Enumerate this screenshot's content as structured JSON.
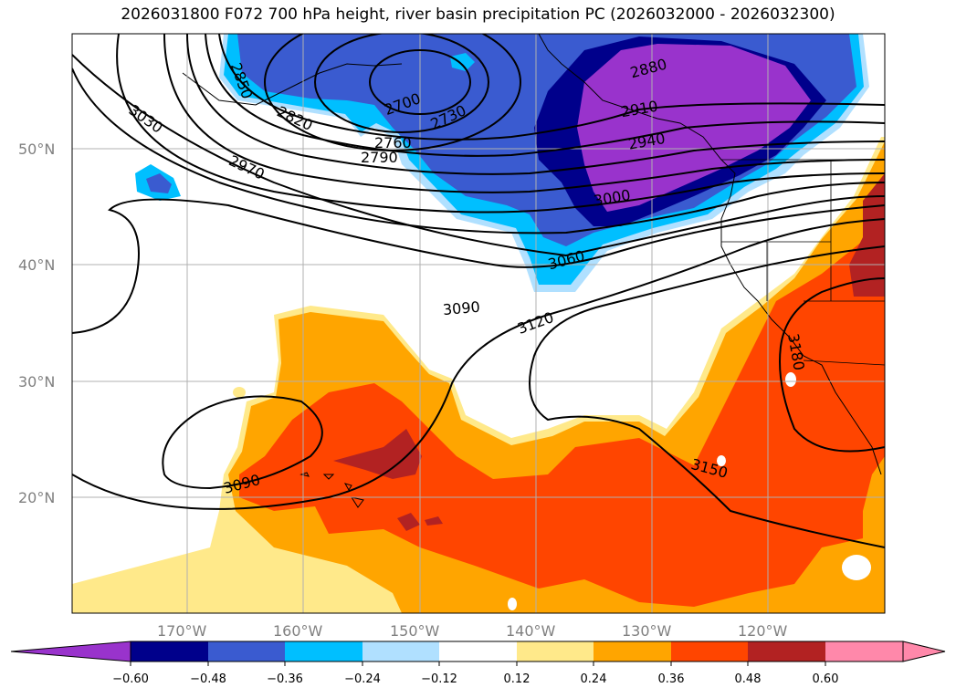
{
  "title": "2026031800 F072 700 hPa height, river basin precipitation PC (2026032000 - 2026032300)",
  "colors": {
    "neg_extend": "#9933cc",
    "bins": [
      "#9933cc",
      "#00008b",
      "#3a5bd0",
      "#00bfff",
      "#b0e0ff",
      "#ffffff",
      "#ffe98a",
      "#ffa500",
      "#ff4500",
      "#b22222",
      "#ff88aa"
    ],
    "pos_extend": "#ff88aa",
    "contour": "#000000",
    "grid": "#b0b0b0"
  },
  "lat_labels": [
    "50°N",
    "40°N",
    "30°N",
    "20°N"
  ],
  "lon_labels": [
    "170°W",
    "160°W",
    "150°W",
    "140°W",
    "130°W",
    "120°W"
  ],
  "colorbar_ticks": [
    "−0.60",
    "−0.48",
    "−0.36",
    "−0.24",
    "−0.12",
    "0.12",
    "0.24",
    "0.36",
    "0.48",
    "0.60"
  ],
  "contour_labels": [
    "2850",
    "3030",
    "2820",
    "2970",
    "2700",
    "2730",
    "2760",
    "2790",
    "2880",
    "2910",
    "2940",
    "3000",
    "3060",
    "3090",
    "3120",
    "3180",
    "3150",
    "3090"
  ]
}
